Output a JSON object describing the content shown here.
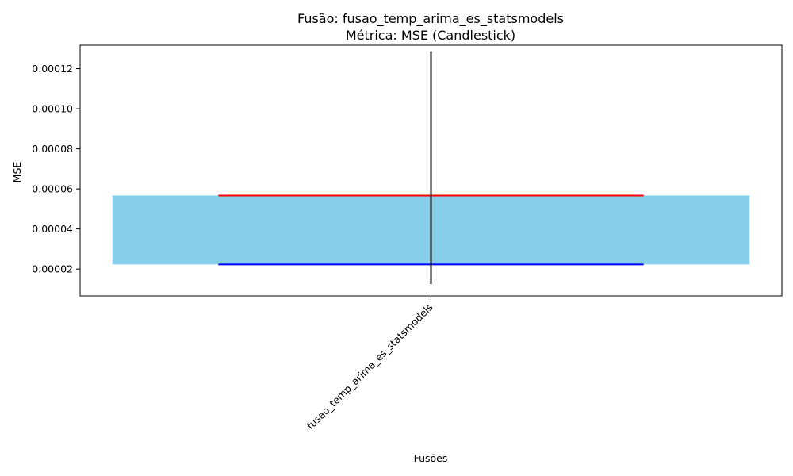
{
  "chart_data": {
    "type": "candlestick",
    "title": "Fusão: fusao_temp_arima_es_statsmodels",
    "subtitle": "Métrica: MSE (Candlestick)",
    "xlabel": "Fusões",
    "ylabel": "MSE",
    "categories": [
      "fusao_temp_arima_es_statsmodels"
    ],
    "candles": [
      {
        "category": "fusao_temp_arima_es_statsmodels",
        "open": 5.67e-05,
        "close": 2.23e-05,
        "high": 0.0001287,
        "low": 1.25e-05
      }
    ],
    "ylim": [
      6.6e-06,
      0.0001317
    ],
    "yticks": [
      2e-05,
      4e-05,
      6e-05,
      8e-05,
      0.0001,
      0.00012
    ],
    "ytick_labels": [
      "0.00002",
      "0.00004",
      "0.00006",
      "0.00008",
      "0.00010",
      "0.00012"
    ],
    "colors": {
      "body": "#87CEEB",
      "open_line": "#FF0000",
      "close_line": "#0000FF",
      "wick": "#000000"
    },
    "grid": false
  }
}
